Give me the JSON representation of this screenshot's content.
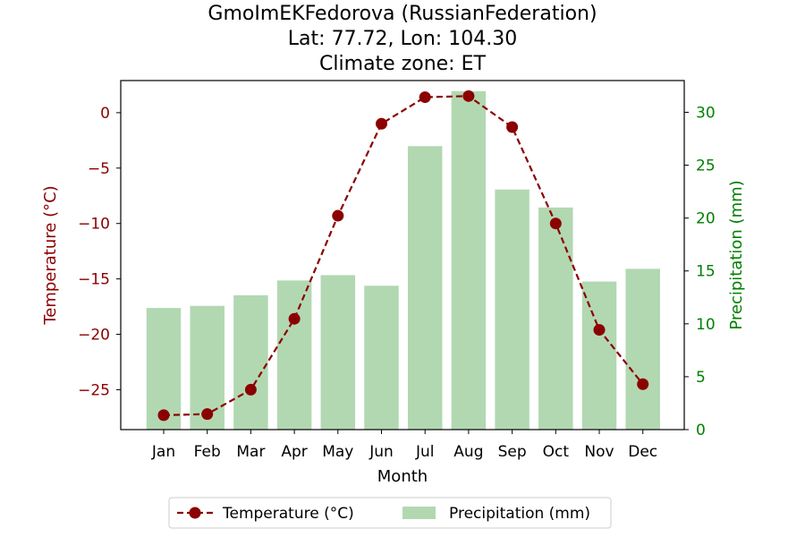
{
  "chart_data": {
    "type": "bar+line",
    "title_lines": [
      "GmoImEKFedorova (RussianFederation)",
      "Lat: 77.72, Lon: 104.30",
      "Climate zone: ET"
    ],
    "xlabel": "Month",
    "categories": [
      "Jan",
      "Feb",
      "Mar",
      "Apr",
      "May",
      "Jun",
      "Jul",
      "Aug",
      "Sep",
      "Oct",
      "Nov",
      "Dec"
    ],
    "temperature": {
      "name": "Temperature (°C)",
      "axis_label": "Temperature (°C)",
      "values": [
        -27.3,
        -27.2,
        -25.0,
        -18.6,
        -9.3,
        -1.0,
        1.4,
        1.5,
        -1.3,
        -10.0,
        -19.6,
        -24.5
      ],
      "color": "#8b0000",
      "ylim": [
        -28.6,
        2.9
      ],
      "ticks": [
        0,
        -5,
        -10,
        -15,
        -20,
        -25
      ],
      "tick_labels": [
        "0",
        "−5",
        "−10",
        "−15",
        "−20",
        "−25"
      ]
    },
    "precipitation": {
      "name": "Precipitation (mm)",
      "axis_label": "Precipitation (mm)",
      "values": [
        11.5,
        11.7,
        12.7,
        14.1,
        14.6,
        13.6,
        26.8,
        32.0,
        22.7,
        21.0,
        14.0,
        15.2
      ],
      "color": "#b2d8b2",
      "axis_color": "#008000",
      "ylim": [
        0,
        33.0
      ],
      "ticks": [
        0,
        5,
        10,
        15,
        20,
        25,
        30
      ],
      "tick_labels": [
        "0",
        "5",
        "10",
        "15",
        "20",
        "25",
        "30"
      ]
    },
    "legend": {
      "position": "bottom-center",
      "entries": [
        "Temperature (°C)",
        "Precipitation (mm)"
      ]
    },
    "grid": false
  }
}
